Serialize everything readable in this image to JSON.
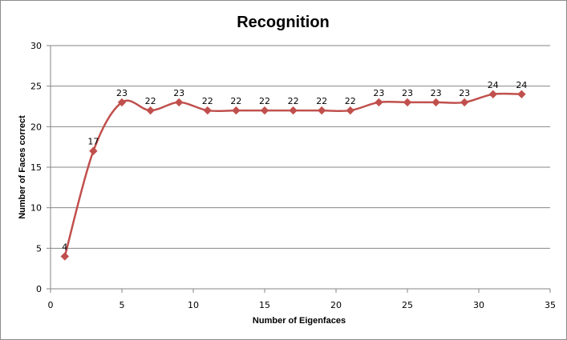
{
  "chart_data": {
    "type": "line",
    "title": "Recognition",
    "xlabel": "Number of Eigenfaces",
    "ylabel": "Number of Faces correct",
    "x": [
      1,
      3,
      5,
      7,
      9,
      11,
      13,
      15,
      17,
      19,
      21,
      23,
      25,
      27,
      29,
      31,
      33
    ],
    "series": [
      {
        "values": [
          4,
          17,
          23,
          22,
          23,
          22,
          22,
          22,
          22,
          22,
          22,
          23,
          23,
          23,
          23,
          24,
          24
        ],
        "color": "#c0504d"
      }
    ],
    "xlim": [
      0,
      35
    ],
    "ylim": [
      0,
      30
    ],
    "xticks": [
      0,
      5,
      10,
      15,
      20,
      25,
      30,
      35
    ],
    "yticks": [
      0,
      5,
      10,
      15,
      20,
      25,
      30
    ],
    "grid": "horizontal",
    "smooth": true,
    "marker": "diamond",
    "data_labels": true,
    "legend": "none"
  }
}
